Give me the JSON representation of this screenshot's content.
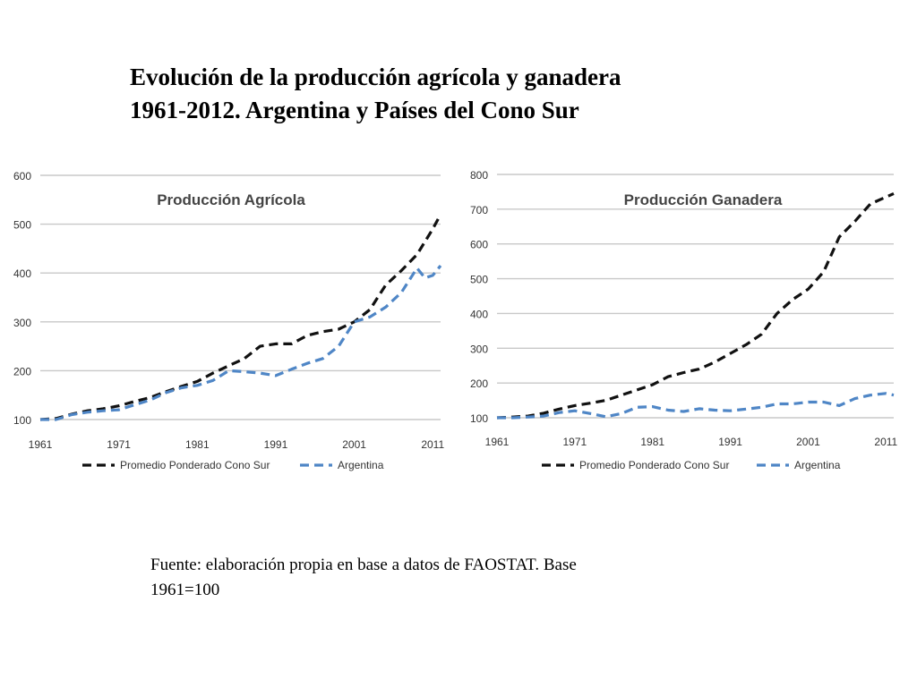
{
  "title": {
    "line1": "Evolución de la producción agrícola y ganadera",
    "line2": "1961-2012. Argentina y Países del Cono Sur"
  },
  "source": {
    "line1": "Fuente: elaboración propia en base a datos de FAOSTAT. Base",
    "line2": "1961=100"
  },
  "colors": {
    "cono_sur": "#111111",
    "argentina": "#4f86c6",
    "grid": "#c8c8c8"
  },
  "chart_data": [
    {
      "type": "line",
      "title": "Producción Agrícola",
      "xlabel": "",
      "ylabel": "",
      "ylim": [
        100,
        600
      ],
      "xlim": [
        1961,
        2012
      ],
      "yticks": [
        100,
        200,
        300,
        400,
        500,
        600
      ],
      "xticks": [
        1961,
        1971,
        1981,
        1991,
        2001,
        2011
      ],
      "grid": true,
      "legend_position": "bottom",
      "series": [
        {
          "name": "Promedio Ponderado Cono Sur",
          "style": "dashed",
          "color": "#111111",
          "x": [
            1961,
            1963,
            1965,
            1967,
            1969,
            1971,
            1973,
            1975,
            1977,
            1979,
            1981,
            1983,
            1985,
            1987,
            1989,
            1991,
            1993,
            1995,
            1997,
            1999,
            2001,
            2003,
            2005,
            2007,
            2009,
            2011,
            2012
          ],
          "y": [
            100,
            102,
            111,
            118,
            122,
            128,
            137,
            145,
            157,
            168,
            178,
            195,
            210,
            225,
            250,
            255,
            255,
            272,
            280,
            285,
            300,
            325,
            375,
            405,
            438,
            490,
            520
          ]
        },
        {
          "name": "Argentina",
          "style": "dashed",
          "color": "#4f86c6",
          "x": [
            1961,
            1963,
            1965,
            1967,
            1969,
            1971,
            1973,
            1975,
            1977,
            1979,
            1981,
            1983,
            1985,
            1987,
            1989,
            1991,
            1993,
            1995,
            1997,
            1999,
            2001,
            2003,
            2005,
            2007,
            2009,
            2010,
            2011,
            2012
          ],
          "y": [
            100,
            100,
            110,
            115,
            118,
            120,
            130,
            140,
            155,
            165,
            170,
            180,
            200,
            198,
            195,
            190,
            203,
            215,
            225,
            250,
            300,
            310,
            330,
            360,
            410,
            390,
            395,
            415
          ]
        }
      ]
    },
    {
      "type": "line",
      "title": "Producción Ganadera",
      "xlabel": "",
      "ylabel": "",
      "ylim": [
        100,
        800
      ],
      "xlim": [
        1961,
        2012
      ],
      "yticks": [
        100,
        200,
        300,
        400,
        500,
        600,
        700,
        800
      ],
      "xticks": [
        1961,
        1971,
        1981,
        1991,
        2001,
        2011
      ],
      "grid": true,
      "legend_position": "bottom",
      "series": [
        {
          "name": "Promedio Ponderado Cono Sur",
          "style": "dashed",
          "color": "#111111",
          "x": [
            1961,
            1963,
            1965,
            1967,
            1969,
            1971,
            1973,
            1975,
            1977,
            1979,
            1981,
            1983,
            1985,
            1987,
            1989,
            1991,
            1993,
            1995,
            1997,
            1999,
            2001,
            2003,
            2005,
            2007,
            2009,
            2011,
            2012
          ],
          "y": [
            100,
            102,
            105,
            113,
            125,
            135,
            142,
            150,
            165,
            180,
            195,
            218,
            230,
            240,
            260,
            285,
            310,
            340,
            400,
            440,
            470,
            520,
            620,
            665,
            715,
            735,
            745
          ]
        },
        {
          "name": "Argentina",
          "style": "dashed",
          "color": "#4f86c6",
          "x": [
            1961,
            1963,
            1965,
            1967,
            1969,
            1971,
            1973,
            1975,
            1977,
            1979,
            1981,
            1983,
            1985,
            1987,
            1989,
            1991,
            1993,
            1995,
            1997,
            1999,
            2001,
            2003,
            2005,
            2007,
            2009,
            2011,
            2012
          ],
          "y": [
            100,
            100,
            102,
            105,
            115,
            120,
            112,
            103,
            112,
            130,
            132,
            122,
            118,
            126,
            122,
            120,
            125,
            130,
            140,
            140,
            145,
            145,
            135,
            155,
            165,
            170,
            165
          ]
        }
      ]
    }
  ]
}
